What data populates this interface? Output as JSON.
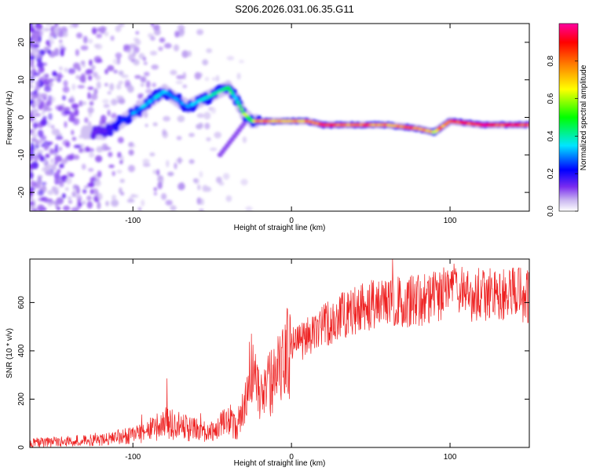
{
  "title": "S206.2026.031.06.35.G11",
  "chart_data": [
    {
      "type": "heatmap",
      "xlabel": "Height of straight line (km)",
      "ylabel": "Frequency (Hz)",
      "xlim": [
        -165,
        150
      ],
      "ylim": [
        -25,
        25
      ],
      "xticks": [
        -100,
        0,
        100
      ],
      "yticks": [
        -20,
        -10,
        0,
        10,
        20
      ],
      "colorbar": {
        "label": "Normalized spectral amplitude",
        "range": [
          0,
          1
        ],
        "ticks": [
          "0.0",
          "0.2",
          "0.4",
          "0.6",
          "0.8"
        ],
        "colors": [
          "#ffffff",
          "#c8b4f0",
          "#7a2cf0",
          "#0000ff",
          "#00e6ff",
          "#00ff00",
          "#ffff00",
          "#ff8000",
          "#ff0000",
          "#ff00a0"
        ]
      },
      "ridge": {
        "x": [
          -120,
          -110,
          -100,
          -90,
          -80,
          -70,
          -65,
          -60,
          -55,
          -50,
          -45,
          -40,
          -35,
          -30,
          -25,
          -20,
          -10,
          0,
          10,
          20,
          40,
          60,
          80,
          90,
          100,
          120,
          150
        ],
        "f": [
          -4,
          -2,
          1,
          4,
          7,
          4,
          3,
          4,
          5,
          6,
          7,
          8,
          5,
          1,
          -1,
          -1,
          -1,
          -1,
          -1,
          -2,
          -2,
          -2,
          -3,
          -4,
          -1,
          -2,
          -2
        ],
        "amp": [
          0.15,
          0.2,
          0.3,
          0.35,
          0.35,
          0.3,
          0.3,
          0.35,
          0.4,
          0.4,
          0.4,
          0.45,
          0.35,
          0.6,
          0.5,
          0.85,
          0.7,
          0.7,
          0.75,
          0.9,
          0.8,
          0.8,
          0.85,
          0.7,
          0.85,
          0.9,
          0.9
        ]
      }
    },
    {
      "type": "line",
      "xlabel": "Height of straight line (km)",
      "ylabel": "SNR (10 * v/v)",
      "xlim": [
        -165,
        150
      ],
      "ylim": [
        0,
        780
      ],
      "xticks": [
        -100,
        0,
        100
      ],
      "yticks": [
        0,
        200,
        400,
        600
      ],
      "color": "#ee2222",
      "series": [
        {
          "name": "SNR",
          "x": [
            -165,
            -140,
            -120,
            -100,
            -90,
            -80,
            -70,
            -60,
            -50,
            -40,
            -35,
            -30,
            -25,
            -20,
            -15,
            -10,
            -5,
            0,
            5,
            10,
            15,
            20,
            30,
            40,
            50,
            60,
            70,
            80,
            90,
            100,
            110,
            120,
            130,
            140,
            150
          ],
          "y": [
            20,
            25,
            35,
            50,
            70,
            100,
            90,
            70,
            70,
            110,
            80,
            150,
            320,
            200,
            260,
            280,
            370,
            420,
            430,
            460,
            480,
            500,
            540,
            570,
            590,
            610,
            600,
            610,
            620,
            650,
            630,
            630,
            640,
            640,
            620
          ]
        }
      ]
    }
  ]
}
